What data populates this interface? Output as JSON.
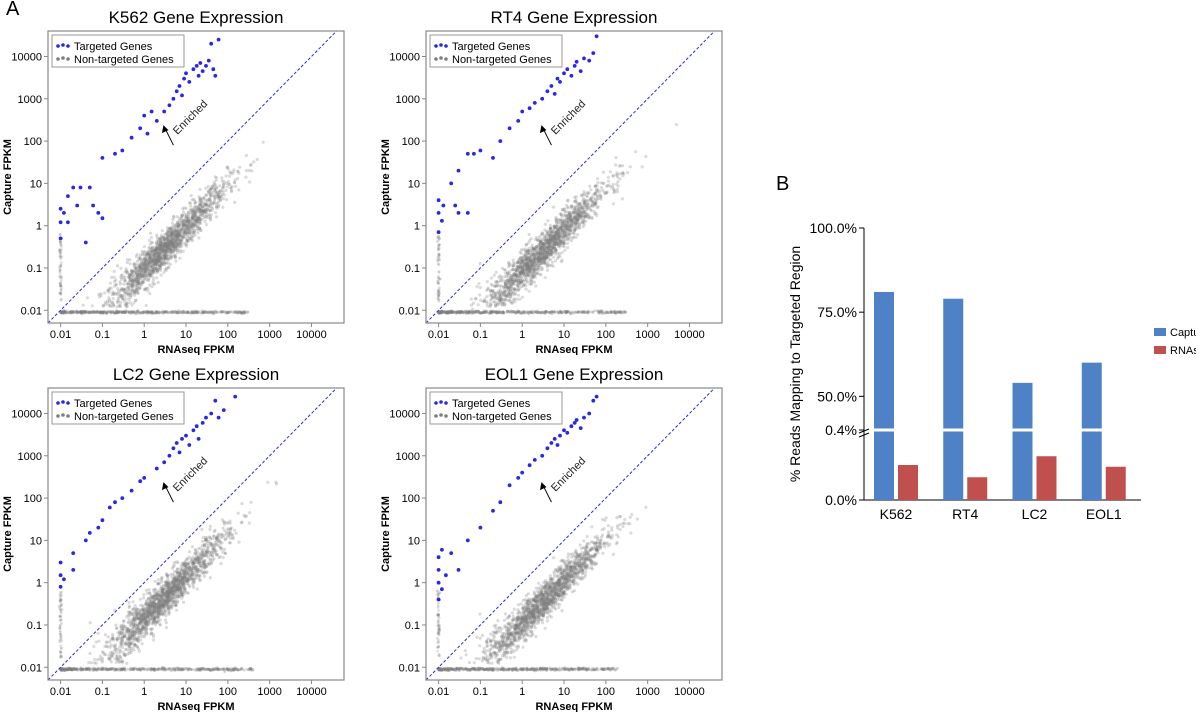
{
  "panel_labels": {
    "a": "A",
    "b": "B"
  },
  "legend": {
    "targeted": "Targeted Genes",
    "nontargeted": "Non-targeted Genes",
    "targeted_color": "#2828e6",
    "nontargeted_color": "#7f7f7f"
  },
  "enriched_label": "Enriched",
  "bar_legend": {
    "capture": "Capture",
    "rnaseq": "RNAseq"
  },
  "chart_data": [
    {
      "type": "scatter",
      "title": "K562 Gene Expression",
      "xlabel": "RNAseq FPKM",
      "ylabel": "Capture FPKM",
      "scale": "log",
      "xlim": [
        0.005,
        60000
      ],
      "ylim": [
        0.005,
        40000
      ],
      "x_ticks": [
        "0.01",
        "0.1",
        "1",
        "10",
        "100",
        "1000",
        "10000"
      ],
      "y_ticks": [
        "0.01",
        "0.1",
        "1",
        "10",
        "100",
        "1000",
        "10000"
      ],
      "diagonal": "y = x",
      "legend_placement": "top-left",
      "series": [
        {
          "name": "Targeted Genes",
          "color": "#2828e6",
          "points": [
            [
              0.01,
              0.5
            ],
            [
              0.01,
              1.2
            ],
            [
              0.01,
              2.5
            ],
            [
              0.012,
              2
            ],
            [
              0.015,
              1.2
            ],
            [
              0.015,
              5
            ],
            [
              0.02,
              8
            ],
            [
              0.025,
              3
            ],
            [
              0.03,
              8
            ],
            [
              0.04,
              0.4
            ],
            [
              0.05,
              8
            ],
            [
              0.06,
              3
            ],
            [
              0.08,
              2
            ],
            [
              0.1,
              1.5
            ],
            [
              0.1,
              40
            ],
            [
              0.2,
              50
            ],
            [
              0.3,
              60
            ],
            [
              0.5,
              120
            ],
            [
              0.8,
              200
            ],
            [
              1,
              400
            ],
            [
              1.2,
              150
            ],
            [
              1.5,
              500
            ],
            [
              2,
              300
            ],
            [
              3,
              500
            ],
            [
              4,
              700
            ],
            [
              5,
              1000
            ],
            [
              6,
              1500
            ],
            [
              7,
              2000
            ],
            [
              8,
              1200
            ],
            [
              9,
              3000
            ],
            [
              10,
              4000
            ],
            [
              12,
              2500
            ],
            [
              15,
              5000
            ],
            [
              18,
              6000
            ],
            [
              20,
              3500
            ],
            [
              22,
              7000
            ],
            [
              25,
              4500
            ],
            [
              30,
              6000
            ],
            [
              35,
              8000
            ],
            [
              40,
              20000
            ],
            [
              45,
              5000
            ],
            [
              50,
              3500
            ],
            [
              60,
              25000
            ]
          ]
        },
        {
          "name": "Non-targeted Genes",
          "color": "#7f7f7f",
          "cloud": {
            "center_x": 3,
            "slope": 1.0,
            "offset": -1.05,
            "n": 1700,
            "zeros_row_y": 0.009,
            "zeros_x_range": [
              0.01,
              300
            ]
          }
        }
      ]
    },
    {
      "type": "scatter",
      "title": "RT4 Gene Expression",
      "xlabel": "RNAseq FPKM",
      "ylabel": "Capture FPKM",
      "scale": "log",
      "xlim": [
        0.005,
        60000
      ],
      "ylim": [
        0.005,
        40000
      ],
      "x_ticks": [
        "0.01",
        "0.1",
        "1",
        "10",
        "100",
        "1000",
        "10000"
      ],
      "y_ticks": [
        "0.01",
        "0.1",
        "1",
        "10",
        "100",
        "1000",
        "10000"
      ],
      "diagonal": "y = x",
      "legend_placement": "top-left",
      "series": [
        {
          "name": "Targeted Genes",
          "color": "#2828e6",
          "points": [
            [
              0.01,
              0.7
            ],
            [
              0.01,
              2
            ],
            [
              0.01,
              4
            ],
            [
              0.012,
              1.3
            ],
            [
              0.013,
              3
            ],
            [
              0.02,
              10
            ],
            [
              0.025,
              3
            ],
            [
              0.03,
              2
            ],
            [
              0.03,
              20
            ],
            [
              0.05,
              2
            ],
            [
              0.05,
              50
            ],
            [
              0.07,
              50
            ],
            [
              0.1,
              60
            ],
            [
              0.2,
              40
            ],
            [
              0.3,
              100
            ],
            [
              0.5,
              200
            ],
            [
              0.8,
              300
            ],
            [
              1,
              500
            ],
            [
              1.5,
              600
            ],
            [
              2,
              800
            ],
            [
              3,
              1000
            ],
            [
              4,
              1500
            ],
            [
              5,
              2000
            ],
            [
              6,
              1300
            ],
            [
              7,
              3000
            ],
            [
              8,
              2500
            ],
            [
              10,
              4000
            ],
            [
              12,
              5000
            ],
            [
              15,
              3500
            ],
            [
              18,
              6000
            ],
            [
              20,
              7500
            ],
            [
              25,
              4500
            ],
            [
              30,
              9000
            ],
            [
              40,
              8000
            ],
            [
              50,
              12000
            ],
            [
              60,
              30000
            ]
          ]
        },
        {
          "name": "Non-targeted Genes",
          "color": "#7f7f7f",
          "cloud": {
            "center_x": 3,
            "slope": 1.0,
            "offset": -1.1,
            "n": 1700,
            "zeros_row_y": 0.009,
            "zeros_x_range": [
              0.01,
              300
            ]
          }
        }
      ]
    },
    {
      "type": "scatter",
      "title": "LC2 Gene Expression",
      "xlabel": "RNAseq FPKM",
      "ylabel": "Capture FPKM",
      "scale": "log",
      "xlim": [
        0.005,
        60000
      ],
      "ylim": [
        0.005,
        40000
      ],
      "x_ticks": [
        "0.01",
        "0.1",
        "1",
        "10",
        "100",
        "1000",
        "10000"
      ],
      "y_ticks": [
        "0.01",
        "0.1",
        "1",
        "10",
        "100",
        "1000",
        "10000"
      ],
      "diagonal": "y = x",
      "legend_placement": "top-left",
      "series": [
        {
          "name": "Targeted Genes",
          "color": "#2828e6",
          "points": [
            [
              0.01,
              0.8
            ],
            [
              0.01,
              1.5
            ],
            [
              0.01,
              3
            ],
            [
              0.012,
              1.2
            ],
            [
              0.02,
              5
            ],
            [
              0.02,
              2
            ],
            [
              0.04,
              10
            ],
            [
              0.05,
              15
            ],
            [
              0.08,
              20
            ],
            [
              0.1,
              30
            ],
            [
              0.15,
              60
            ],
            [
              0.2,
              80
            ],
            [
              0.3,
              100
            ],
            [
              0.5,
              150
            ],
            [
              0.8,
              250
            ],
            [
              1,
              300
            ],
            [
              2,
              500
            ],
            [
              3,
              700
            ],
            [
              4,
              1000
            ],
            [
              5,
              1500
            ],
            [
              6,
              2000
            ],
            [
              7,
              1200
            ],
            [
              8,
              2500
            ],
            [
              10,
              3000
            ],
            [
              12,
              1800
            ],
            [
              15,
              4000
            ],
            [
              18,
              5000
            ],
            [
              20,
              2500
            ],
            [
              25,
              6000
            ],
            [
              30,
              8000
            ],
            [
              40,
              10000
            ],
            [
              50,
              20000
            ],
            [
              60,
              8000
            ],
            [
              80,
              12000
            ],
            [
              150,
              25000
            ]
          ]
        },
        {
          "name": "Non-targeted Genes",
          "color": "#7f7f7f",
          "cloud": {
            "center_x": 3,
            "slope": 1.0,
            "offset": -0.85,
            "n": 1700,
            "zeros_row_y": 0.009,
            "zeros_x_range": [
              0.01,
              400
            ]
          }
        }
      ]
    },
    {
      "type": "scatter",
      "title": "EOL1 Gene Expression",
      "xlabel": "RNAseq FPKM",
      "ylabel": "Capture FPKM",
      "scale": "log",
      "xlim": [
        0.005,
        60000
      ],
      "ylim": [
        0.005,
        40000
      ],
      "x_ticks": [
        "0.01",
        "0.1",
        "1",
        "10",
        "100",
        "1000",
        "10000"
      ],
      "y_ticks": [
        "0.01",
        "0.1",
        "1",
        "10",
        "100",
        "1000",
        "10000"
      ],
      "diagonal": "y = x",
      "legend_placement": "top-left",
      "series": [
        {
          "name": "Targeted Genes",
          "color": "#2828e6",
          "points": [
            [
              0.01,
              0.4
            ],
            [
              0.01,
              1
            ],
            [
              0.01,
              2
            ],
            [
              0.01,
              4
            ],
            [
              0.012,
              0.7
            ],
            [
              0.012,
              6
            ],
            [
              0.015,
              1.5
            ],
            [
              0.02,
              5
            ],
            [
              0.03,
              2
            ],
            [
              0.05,
              10
            ],
            [
              0.1,
              20
            ],
            [
              0.2,
              50
            ],
            [
              0.3,
              80
            ],
            [
              0.5,
              200
            ],
            [
              0.8,
              300
            ],
            [
              1,
              400
            ],
            [
              1.5,
              600
            ],
            [
              2,
              800
            ],
            [
              3,
              1000
            ],
            [
              4,
              1500
            ],
            [
              5,
              2000
            ],
            [
              6,
              2500
            ],
            [
              7,
              1800
            ],
            [
              8,
              3000
            ],
            [
              10,
              4000
            ],
            [
              12,
              3500
            ],
            [
              15,
              5000
            ],
            [
              18,
              6000
            ],
            [
              20,
              7000
            ],
            [
              25,
              4500
            ],
            [
              30,
              8000
            ],
            [
              40,
              10000
            ],
            [
              50,
              20000
            ],
            [
              60,
              25000
            ]
          ]
        },
        {
          "name": "Non-targeted Genes",
          "color": "#7f7f7f",
          "cloud": {
            "center_x": 3,
            "slope": 1.0,
            "offset": -0.95,
            "n": 1700,
            "zeros_row_y": 0.009,
            "zeros_x_range": [
              0.01,
              200
            ]
          }
        }
      ]
    },
    {
      "type": "bar",
      "ylabel": "% Reads Mapping to Targeted Region",
      "categories": [
        "K562",
        "RT4",
        "LC2",
        "EOL1"
      ],
      "axis_break": true,
      "y_ticks": [
        "0.0%",
        "0.4%",
        "50.0%",
        "75.0%",
        "100.0%"
      ],
      "ylim_lower": [
        0,
        0.4
      ],
      "ylim_upper": [
        40,
        100
      ],
      "legend_placement": "right",
      "series": [
        {
          "name": "Capture",
          "color": "#4f81c7",
          "values": [
            81,
            79,
            54,
            60
          ]
        },
        {
          "name": "RNAseq",
          "color": "#c0504d",
          "values": [
            0.2,
            0.13,
            0.25,
            0.19
          ]
        }
      ]
    }
  ]
}
